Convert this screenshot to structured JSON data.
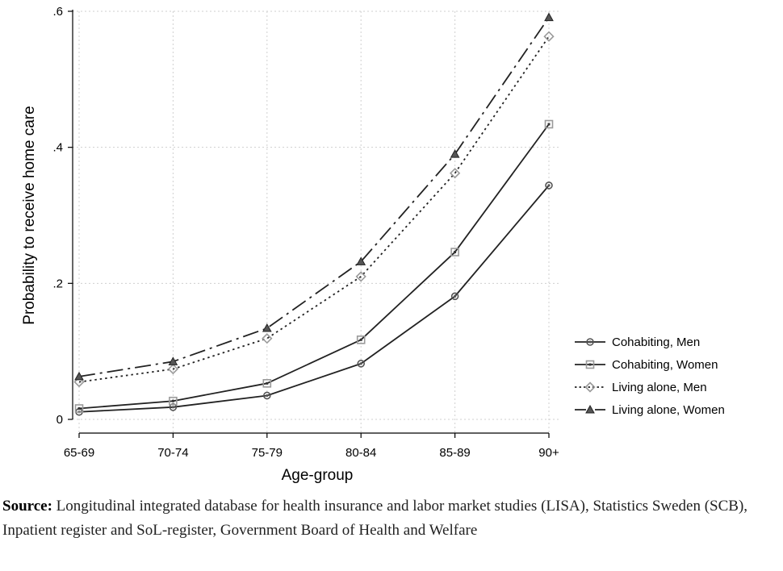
{
  "chart_data": {
    "type": "line",
    "title": "",
    "xlabel": "Age-group",
    "ylabel": "Probability to receive home care",
    "categories": [
      "65-69",
      "70-74",
      "75-79",
      "80-84",
      "85-89",
      "90+"
    ],
    "ylim": [
      0,
      0.6
    ],
    "yticks": [
      0,
      0.2,
      0.4,
      0.6
    ],
    "ytick_labels": [
      "0",
      ".2",
      ".4",
      ".6"
    ],
    "grid": true,
    "legend_position": "right",
    "series": [
      {
        "name": "Cohabiting, Men",
        "values": [
          0.011,
          0.018,
          0.035,
          0.082,
          0.181,
          0.344
        ],
        "marker": "circle",
        "dash": "solid",
        "color": "#222222",
        "marker_color": "#555555"
      },
      {
        "name": "Cohabiting, Women",
        "values": [
          0.016,
          0.027,
          0.053,
          0.117,
          0.246,
          0.434
        ],
        "marker": "square",
        "dash": "solid",
        "color": "#222222",
        "marker_color": "#9a9a9a"
      },
      {
        "name": "Living alone, Men",
        "values": [
          0.055,
          0.074,
          0.119,
          0.21,
          0.362,
          0.563
        ],
        "marker": "diamond",
        "dash": "dotted",
        "color": "#222222",
        "marker_color": "#9a9a9a"
      },
      {
        "name": "Living alone, Women",
        "values": [
          0.063,
          0.085,
          0.134,
          0.232,
          0.39,
          0.591
        ],
        "marker": "triangle",
        "dash": "longdashdot",
        "color": "#222222",
        "marker_color": "#555555"
      }
    ]
  },
  "caption": {
    "label": "Source:",
    "text": " Longitudinal integrated database for health insurance and labor market studies (LISA), Statistics Sweden (SCB), Inpatient register and SoL-register, Government Board of Health and Welfare"
  }
}
